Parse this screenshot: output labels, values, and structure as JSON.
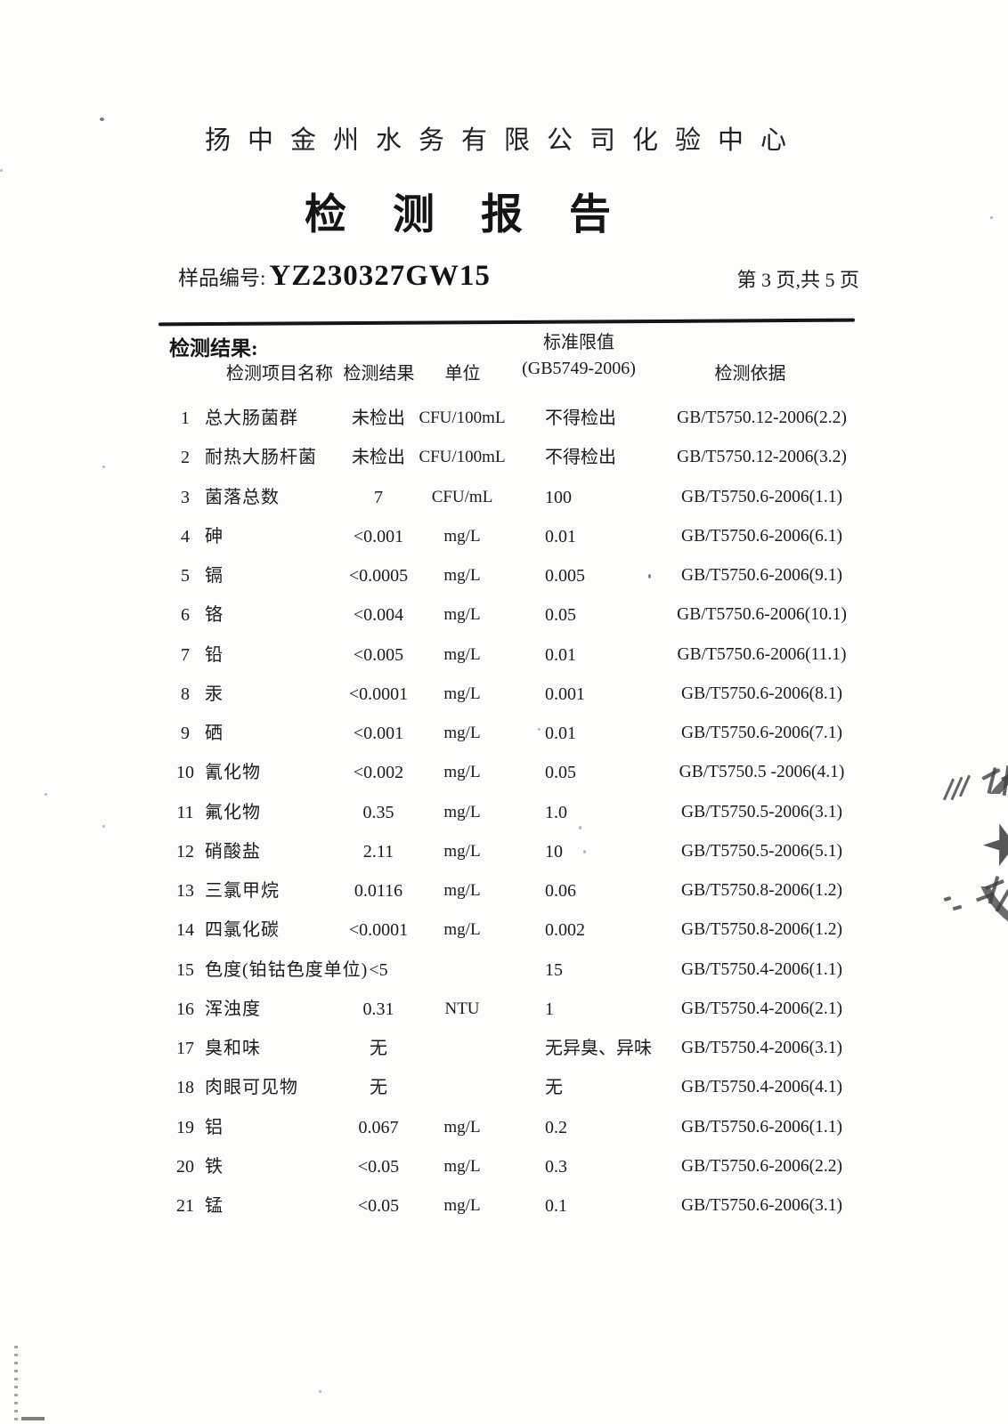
{
  "page": {
    "org_name": "扬中金州水务有限公司化验中心",
    "title": "检测报告",
    "sample_label": "样品编号:",
    "sample_no": "YZ230327GW15",
    "page_indicator": "第 3 页,共 5 页"
  },
  "table": {
    "section_label": "检测结果:",
    "limit_header_top": "标准限值",
    "headers": {
      "name": "检测项目名称",
      "result": "检测结果",
      "unit": "单位",
      "limit": "(GB5749-2006)",
      "basis": "检测依据"
    },
    "rows": [
      {
        "no": "1",
        "name": "总大肠菌群",
        "result": "未检出",
        "unit": "CFU/100mL",
        "limit": "不得检出",
        "basis": "GB/T5750.12-2006(2.2)"
      },
      {
        "no": "2",
        "name": "耐热大肠杆菌",
        "result": "未检出",
        "unit": "CFU/100mL",
        "limit": "不得检出",
        "basis": "GB/T5750.12-2006(3.2)"
      },
      {
        "no": "3",
        "name": "菌落总数",
        "result": "7",
        "unit": "CFU/mL",
        "limit": "100",
        "basis": "GB/T5750.6-2006(1.1)"
      },
      {
        "no": "4",
        "name": "砷",
        "result": "<0.001",
        "unit": "mg/L",
        "limit": "0.01",
        "basis": "GB/T5750.6-2006(6.1)"
      },
      {
        "no": "5",
        "name": "镉",
        "result": "<0.0005",
        "unit": "mg/L",
        "limit": "0.005",
        "basis": "GB/T5750.6-2006(9.1)"
      },
      {
        "no": "6",
        "name": "铬",
        "result": "<0.004",
        "unit": "mg/L",
        "limit": "0.05",
        "basis": "GB/T5750.6-2006(10.1)"
      },
      {
        "no": "7",
        "name": "铅",
        "result": "<0.005",
        "unit": "mg/L",
        "limit": "0.01",
        "basis": "GB/T5750.6-2006(11.1)"
      },
      {
        "no": "8",
        "name": "汞",
        "result": "<0.0001",
        "unit": "mg/L",
        "limit": "0.001",
        "basis": "GB/T5750.6-2006(8.1)"
      },
      {
        "no": "9",
        "name": "硒",
        "result": "<0.001",
        "unit": "mg/L",
        "limit": "0.01",
        "basis": "GB/T5750.6-2006(7.1)"
      },
      {
        "no": "10",
        "name": "氰化物",
        "result": "<0.002",
        "unit": "mg/L",
        "limit": "0.05",
        "basis": "GB/T5750.5 -2006(4.1)"
      },
      {
        "no": "11",
        "name": "氟化物",
        "result": "0.35",
        "unit": "mg/L",
        "limit": "1.0",
        "basis": "GB/T5750.5-2006(3.1)"
      },
      {
        "no": "12",
        "name": "硝酸盐",
        "result": "2.11",
        "unit": "mg/L",
        "limit": "10",
        "basis": "GB/T5750.5-2006(5.1)"
      },
      {
        "no": "13",
        "name": "三氯甲烷",
        "result": "0.0116",
        "unit": "mg/L",
        "limit": "0.06",
        "basis": "GB/T5750.8-2006(1.2)"
      },
      {
        "no": "14",
        "name": "四氯化碳",
        "result": "<0.0001",
        "unit": "mg/L",
        "limit": "0.002",
        "basis": "GB/T5750.8-2006(1.2)"
      },
      {
        "no": "15",
        "name": "色度(铂钴色度单位)",
        "result": "<5",
        "unit": "",
        "limit": "15",
        "basis": "GB/T5750.4-2006(1.1)"
      },
      {
        "no": "16",
        "name": "浑浊度",
        "result": "0.31",
        "unit": "NTU",
        "limit": "1",
        "basis": "GB/T5750.4-2006(2.1)"
      },
      {
        "no": "17",
        "name": "臭和味",
        "result": "无",
        "unit": "",
        "limit": "无异臭、异味",
        "basis": "GB/T5750.4-2006(3.1)"
      },
      {
        "no": "18",
        "name": "肉眼可见物",
        "result": "无",
        "unit": "",
        "limit": "无",
        "basis": "GB/T5750.4-2006(4.1)"
      },
      {
        "no": "19",
        "name": "铝",
        "result": "0.067",
        "unit": "mg/L",
        "limit": "0.2",
        "basis": "GB/T5750.6-2006(1.1)"
      },
      {
        "no": "20",
        "name": "铁",
        "result": "<0.05",
        "unit": "mg/L",
        "limit": "0.3",
        "basis": "GB/T5750.6-2006(2.2)"
      },
      {
        "no": "21",
        "name": "锰",
        "result": "<0.05",
        "unit": "mg/L",
        "limit": "0.1",
        "basis": "GB/T5750.6-2006(3.1)"
      }
    ]
  }
}
